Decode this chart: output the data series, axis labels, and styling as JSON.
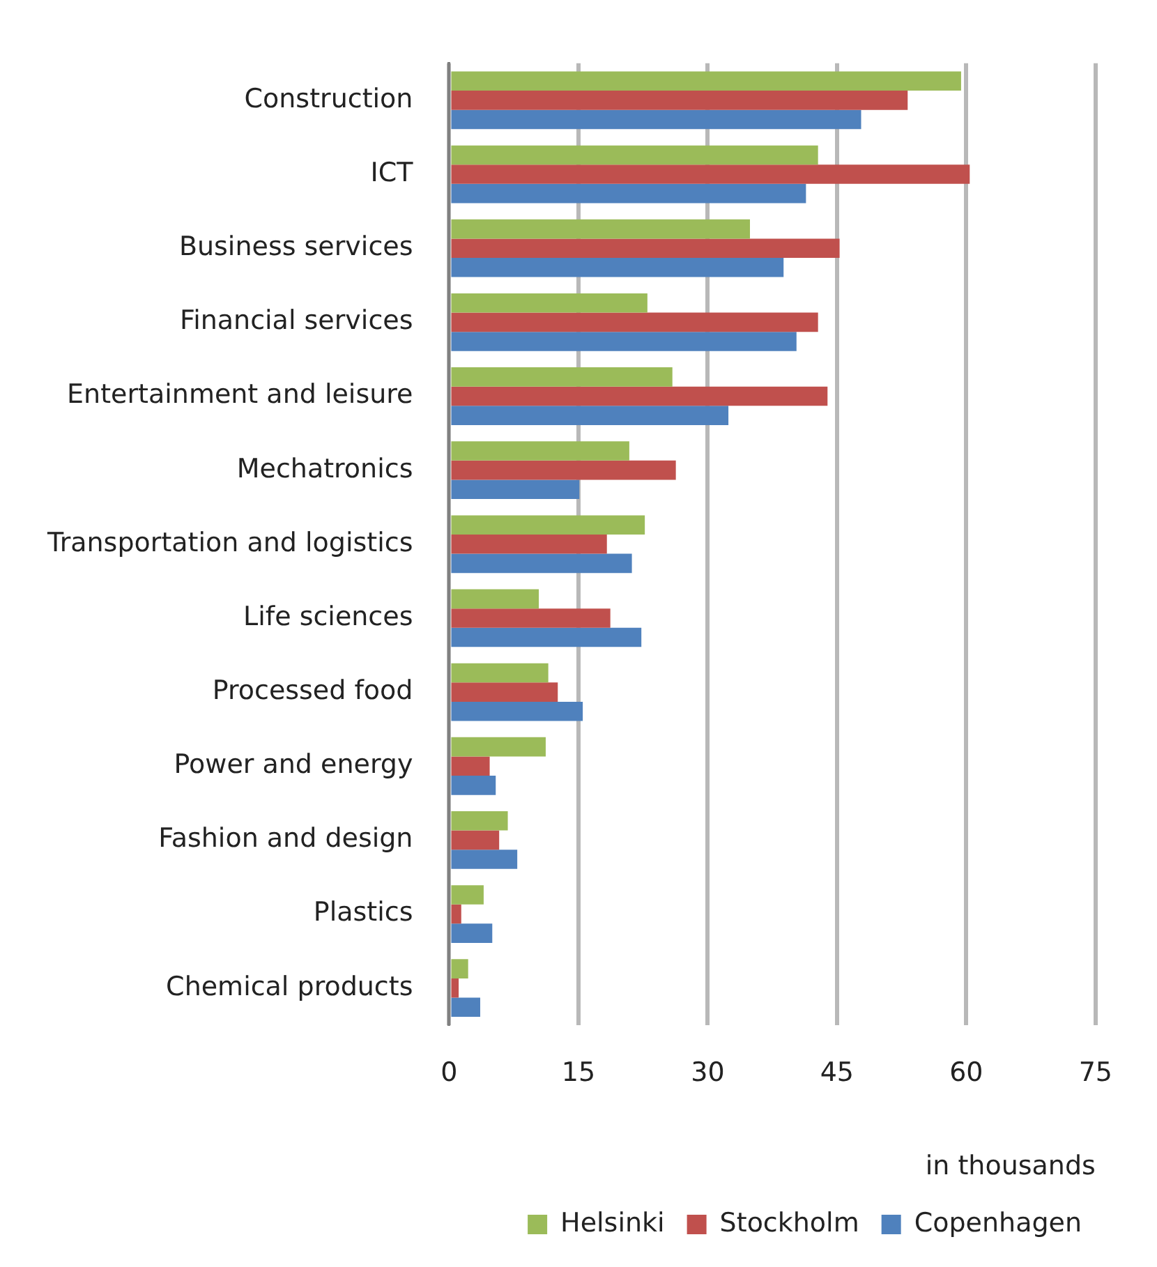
{
  "chart_data": {
    "type": "bar",
    "orientation": "horizontal",
    "categories": [
      "Construction",
      "ICT",
      "Business services",
      "Financial services",
      "Entertainment and leisure",
      "Mechatronics",
      "Transportation and logistics",
      "Life sciences",
      "Processed food",
      "Power and energy",
      "Fashion and design",
      "Plastics",
      "Chemical products"
    ],
    "series": [
      {
        "name": "Helsinki",
        "color": "#9bbb59",
        "values": [
          59.4,
          42.8,
          34.9,
          23.0,
          25.9,
          20.9,
          22.7,
          10.4,
          11.5,
          11.2,
          6.8,
          4.0,
          2.2
        ]
      },
      {
        "name": "Stockholm",
        "color": "#c0504d",
        "values": [
          53.2,
          60.4,
          45.3,
          42.8,
          43.9,
          26.3,
          18.3,
          18.7,
          12.6,
          4.7,
          5.8,
          1.4,
          1.1
        ]
      },
      {
        "name": "Copenhagen",
        "color": "#4f81bd",
        "values": [
          47.8,
          41.4,
          38.8,
          40.3,
          32.4,
          15.1,
          21.2,
          22.3,
          15.5,
          5.4,
          7.9,
          5.0,
          3.6
        ]
      }
    ],
    "xlabel": "in thousands",
    "xlim": [
      0,
      75
    ],
    "xticks": [
      0,
      15,
      30,
      45,
      60,
      75
    ],
    "grid": "x",
    "legend": "bottom right"
  }
}
